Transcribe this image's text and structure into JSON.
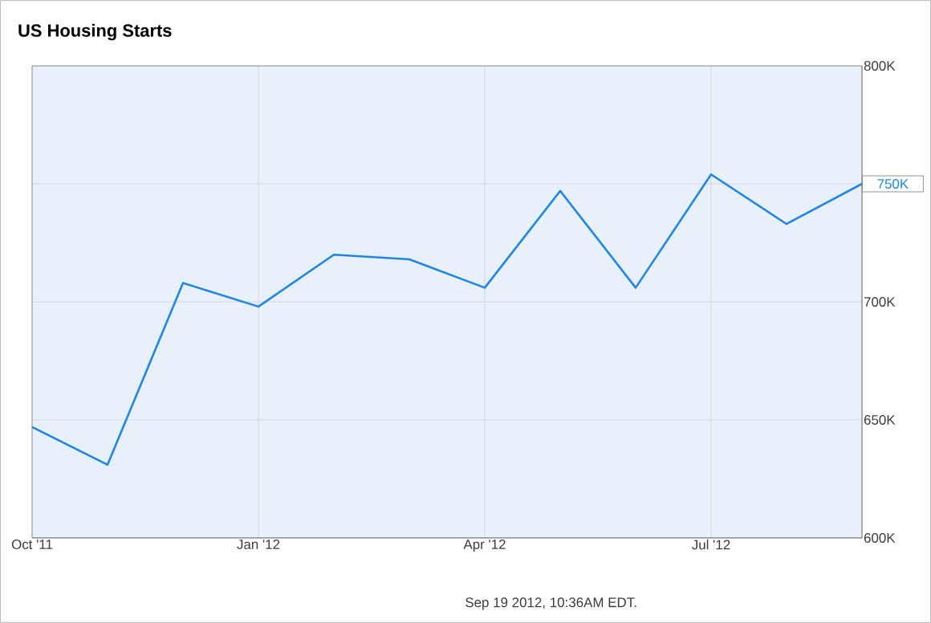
{
  "chart_data": {
    "type": "line",
    "title": "US Housing Starts",
    "x": [
      "2011-10",
      "2011-11",
      "2011-12",
      "2012-01",
      "2012-02",
      "2012-03",
      "2012-04",
      "2012-05",
      "2012-06",
      "2012-07",
      "2012-08",
      "2012-09"
    ],
    "series": [
      {
        "color": "#1f86e5",
        "values": [
          647,
          631,
          708,
          698,
          720,
          718,
          706,
          747,
          706,
          754,
          733,
          750
        ]
      }
    ],
    "xlim": [
      "2011-10",
      "2012-09"
    ],
    "xticks": [
      {
        "value": "2011-10",
        "label": "Oct '11"
      },
      {
        "value": "2012-01",
        "label": "Jan '12"
      },
      {
        "value": "2012-04",
        "label": "Apr '12"
      },
      {
        "value": "2012-07",
        "label": "Jul '12"
      }
    ],
    "ylim": [
      600,
      800
    ],
    "yticks": [
      {
        "value": 600,
        "label": "600K"
      },
      {
        "value": 650,
        "label": "650K"
      },
      {
        "value": 700,
        "label": "700K"
      },
      {
        "value": 750,
        "label": null
      },
      {
        "value": 800,
        "label": "800K"
      }
    ],
    "grid": true,
    "marker": "none",
    "line_style": "solid",
    "annotations": [
      {
        "text": "750K",
        "x": "2012-09",
        "y": 750
      },
      "Sep 19 2012, 10:36AM EDT."
    ]
  }
}
